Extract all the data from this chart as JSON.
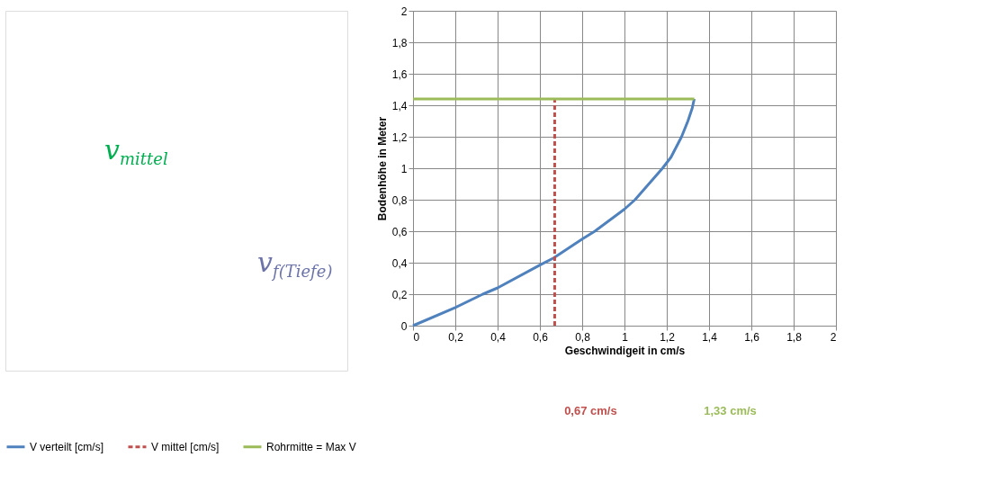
{
  "chart_data": [
    {
      "type": "other",
      "annotations": [
        "v$_{mittel}$",
        "v$_{f(Tiefe)}$"
      ]
    },
    {
      "type": "line",
      "xlabel": "Geschwindigeit  in cm/s",
      "ylabel": "Bodenhöhe  in Meter",
      "series": [
        {
          "name": "V verteilt [cm/s]",
          "color": "#4f81bd",
          "line_style": "solid",
          "x": [
            0,
            0.2,
            0.33,
            0.4,
            0.6,
            0.665,
            0.8,
            0.86,
            1.0,
            1.05,
            1.18,
            1.22,
            1.27,
            1.3,
            1.32,
            1.33
          ],
          "values": [
            0,
            0.115,
            0.2,
            0.24,
            0.385,
            0.43,
            0.55,
            0.6,
            0.74,
            0.8,
            1.0,
            1.07,
            1.2,
            1.3,
            1.38,
            1.44
          ]
        },
        {
          "name": "V mittel [cm/s]",
          "color": "#c0504d",
          "line_style": "dashed",
          "x": [
            0.67,
            0.67
          ],
          "values": [
            0,
            1.44
          ]
        },
        {
          "name": "Rohrmitte = Max V",
          "color": "#9bbb59",
          "line_style": "solid",
          "x": [
            0,
            1.33
          ],
          "values": [
            1.44,
            1.44
          ]
        }
      ],
      "xlim": [
        0,
        2
      ],
      "ylim": [
        0,
        2
      ],
      "xticks": [
        0,
        {
          "value": 0.2,
          "label": "0,2"
        },
        {
          "value": 0.4,
          "label": "0,4"
        },
        {
          "value": 0.6,
          "label": "0,6"
        },
        {
          "value": 0.8,
          "label": "0,8"
        },
        1,
        {
          "value": 1.2,
          "label": "1,2"
        },
        {
          "value": 1.4,
          "label": "1,4"
        },
        {
          "value": 1.6,
          "label": "1,6"
        },
        {
          "value": 1.8,
          "label": "1,8"
        },
        2
      ],
      "yticks": [
        0,
        {
          "value": 0.2,
          "label": "0,2"
        },
        {
          "value": 0.4,
          "label": "0,4"
        },
        {
          "value": 0.6,
          "label": "0,6"
        },
        {
          "value": 0.8,
          "label": "0,8"
        },
        1,
        {
          "value": 1.2,
          "label": "1,2"
        },
        {
          "value": 1.4,
          "label": "1,4"
        },
        {
          "value": 1.6,
          "label": "1,6"
        },
        {
          "value": 1.8,
          "label": "1,8"
        },
        2
      ],
      "grid": true,
      "legend": "bottom",
      "annotations": [
        "0,67 cm/s",
        "1,33 cm/s"
      ]
    }
  ]
}
